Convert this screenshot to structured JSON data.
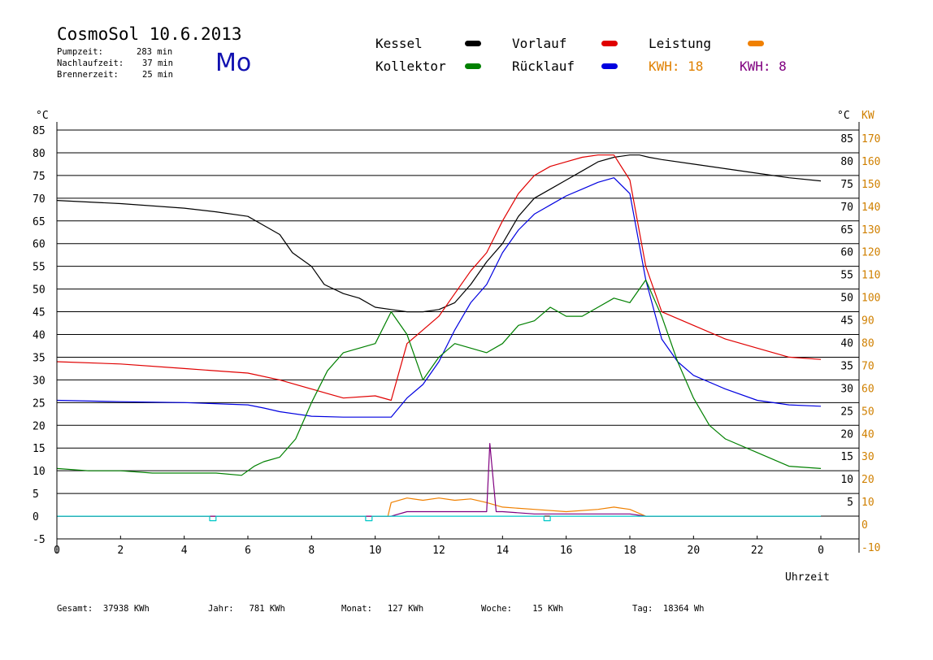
{
  "header": {
    "title": "CosmoSol 10.6.2013",
    "stats": [
      {
        "label": "Pumpzeit:",
        "value": "283 min"
      },
      {
        "label": "Nachlaufzeit:",
        "value": "37 min"
      },
      {
        "label": "Brennerzeit:",
        "value": "25 min"
      }
    ],
    "weekday": "Mo"
  },
  "legend": {
    "items": [
      {
        "label": "Kessel",
        "color": "#000000"
      },
      {
        "label": "Vorlauf",
        "color": "#e00000"
      },
      {
        "label": "Leistung",
        "color": "#f08000"
      },
      {
        "label": "Kollektor",
        "color": "#008000"
      },
      {
        "label": "Rücklauf",
        "color": "#0000e0"
      }
    ],
    "kwh_orange": "KWH: 18",
    "kwh_purple": "KWH: 8"
  },
  "footer": {
    "gesamt": "Gesamt:  37938 KWh",
    "jahr": "Jahr:   781 KWh",
    "monat": "Monat:   127 KWh",
    "woche": "Woche:    15 KWh",
    "tag": "Tag:  18364 Wh"
  },
  "chart_data": {
    "type": "line",
    "xlabel": "Uhrzeit",
    "ylabel_left": "°C",
    "ylabel_right_temp": "°C",
    "ylabel_right_power": "KW",
    "xlim": [
      0,
      24
    ],
    "x_ticks": [
      "0",
      "2",
      "4",
      "6",
      "8",
      "10",
      "12",
      "14",
      "16",
      "18",
      "20",
      "22",
      "0"
    ],
    "ylim": [
      -5,
      85
    ],
    "y_ticks_left": [
      -5,
      0,
      5,
      10,
      15,
      20,
      25,
      30,
      35,
      40,
      45,
      50,
      55,
      60,
      65,
      70,
      75,
      80,
      85
    ],
    "y_ticks_right_temp": [
      5,
      10,
      15,
      20,
      25,
      30,
      35,
      40,
      45,
      50,
      55,
      60,
      65,
      70,
      75,
      80,
      85
    ],
    "y_ticks_right_power": [
      -10,
      0,
      10,
      20,
      30,
      40,
      50,
      60,
      70,
      80,
      90,
      100,
      110,
      120,
      130,
      140,
      150,
      160,
      170
    ],
    "grid": true,
    "series": [
      {
        "name": "Kessel",
        "color": "#000000",
        "x": [
          0,
          2,
          4,
          5,
          6,
          6.5,
          7,
          7.4,
          8,
          8.4,
          9,
          9.5,
          10,
          10.5,
          11,
          11.5,
          12,
          12.5,
          13,
          13.5,
          14,
          14.5,
          15,
          15.5,
          16,
          16.5,
          17,
          17.5,
          18,
          18.3,
          18.6,
          19,
          20,
          21,
          22,
          23,
          24
        ],
        "y": [
          69.5,
          68.8,
          67.8,
          67,
          66,
          64,
          62,
          58,
          55,
          51,
          49,
          48,
          46,
          45.5,
          45,
          45,
          45.5,
          47,
          51,
          56,
          60,
          66,
          70,
          72,
          74,
          76,
          78,
          79,
          79.5,
          79.5,
          79,
          78.5,
          77.5,
          76.5,
          75.5,
          74.5,
          73.8
        ]
      },
      {
        "name": "Vorlauf",
        "color": "#e00000",
        "x": [
          0,
          2,
          4,
          6,
          7,
          8,
          8.5,
          9,
          10,
          10.5,
          11,
          11.5,
          12,
          12.5,
          13,
          13.5,
          14,
          14.5,
          15,
          15.5,
          16,
          16.5,
          17,
          17.5,
          18,
          18.5,
          19,
          20,
          21,
          22,
          23,
          24
        ],
        "y": [
          34,
          33.5,
          32.5,
          31.5,
          30,
          28,
          27,
          26,
          26.5,
          25.5,
          38,
          41,
          44,
          49,
          54,
          58,
          65,
          71,
          75,
          77,
          78,
          79,
          79.5,
          79.5,
          74,
          55,
          45,
          42,
          39,
          37,
          35,
          34.5
        ]
      },
      {
        "name": "Rücklauf",
        "color": "#0000e0",
        "x": [
          0,
          2,
          4,
          6,
          6.5,
          7,
          8,
          9,
          10,
          10.5,
          11,
          11.5,
          12,
          12.5,
          13,
          13.5,
          14,
          14.5,
          15,
          15.5,
          16,
          16.5,
          17,
          17.5,
          18,
          18.5,
          19,
          19.5,
          20,
          21,
          22,
          23,
          24
        ],
        "y": [
          25.5,
          25.2,
          25,
          24.5,
          23.8,
          23,
          22,
          21.8,
          21.8,
          21.8,
          26,
          29,
          34,
          41,
          47,
          51,
          58,
          63,
          66.5,
          68.5,
          70.5,
          72,
          73.5,
          74.5,
          71,
          52,
          39,
          34,
          31,
          28,
          25.5,
          24.5,
          24.2
        ]
      },
      {
        "name": "Kollektor",
        "color": "#008000",
        "x": [
          0,
          1,
          2,
          3,
          4,
          5,
          5.8,
          6.2,
          6.5,
          7,
          7.5,
          8,
          8.5,
          9,
          9.5,
          10,
          10.5,
          11,
          11.5,
          12,
          12.5,
          13,
          13.5,
          14,
          14.5,
          15,
          15.5,
          16,
          16.5,
          17,
          17.5,
          18,
          18.5,
          19,
          19.5,
          20,
          20.5,
          21,
          22,
          23,
          24
        ],
        "y": [
          10.5,
          10,
          10,
          9.5,
          9.5,
          9.5,
          9,
          11,
          12,
          13,
          17,
          25,
          32,
          36,
          37,
          38,
          45,
          40,
          30,
          35,
          38,
          37,
          36,
          38,
          42,
          43,
          46,
          44,
          44,
          46,
          48,
          47,
          52,
          44,
          34,
          26,
          20,
          17,
          14,
          11,
          10.5
        ]
      },
      {
        "name": "Leistung",
        "color": "#f08000",
        "x": [
          0,
          10.4,
          10.5,
          11,
          11.5,
          12,
          12.5,
          13,
          13.5,
          14,
          15,
          16,
          17,
          17.5,
          18,
          18.5,
          24
        ],
        "y": [
          0,
          0,
          3,
          4,
          3.5,
          4,
          3.5,
          3.8,
          3,
          2,
          1.5,
          1,
          1.5,
          2,
          1.5,
          0,
          0
        ]
      },
      {
        "name": "Leistung2",
        "color": "#800080",
        "x": [
          0,
          10.5,
          11,
          12,
          13,
          13.5,
          13.6,
          13.8,
          14,
          15,
          16,
          17,
          18,
          18.5,
          24
        ],
        "y": [
          0,
          0,
          1,
          1,
          1,
          1,
          16,
          1,
          1,
          0.5,
          0.5,
          0.5,
          0.5,
          0,
          0
        ]
      },
      {
        "name": "Pumpe",
        "color": "#00c8c8",
        "x": [
          0,
          4.8,
          4.8,
          5,
          5,
          9.7,
          9.7,
          9.9,
          9.9,
          15.3,
          15.3,
          15.5,
          15.5,
          24
        ],
        "y": [
          0,
          0,
          -1,
          -1,
          0,
          0,
          -1,
          -1,
          0,
          0,
          -1,
          -1,
          0,
          0
        ]
      }
    ]
  }
}
